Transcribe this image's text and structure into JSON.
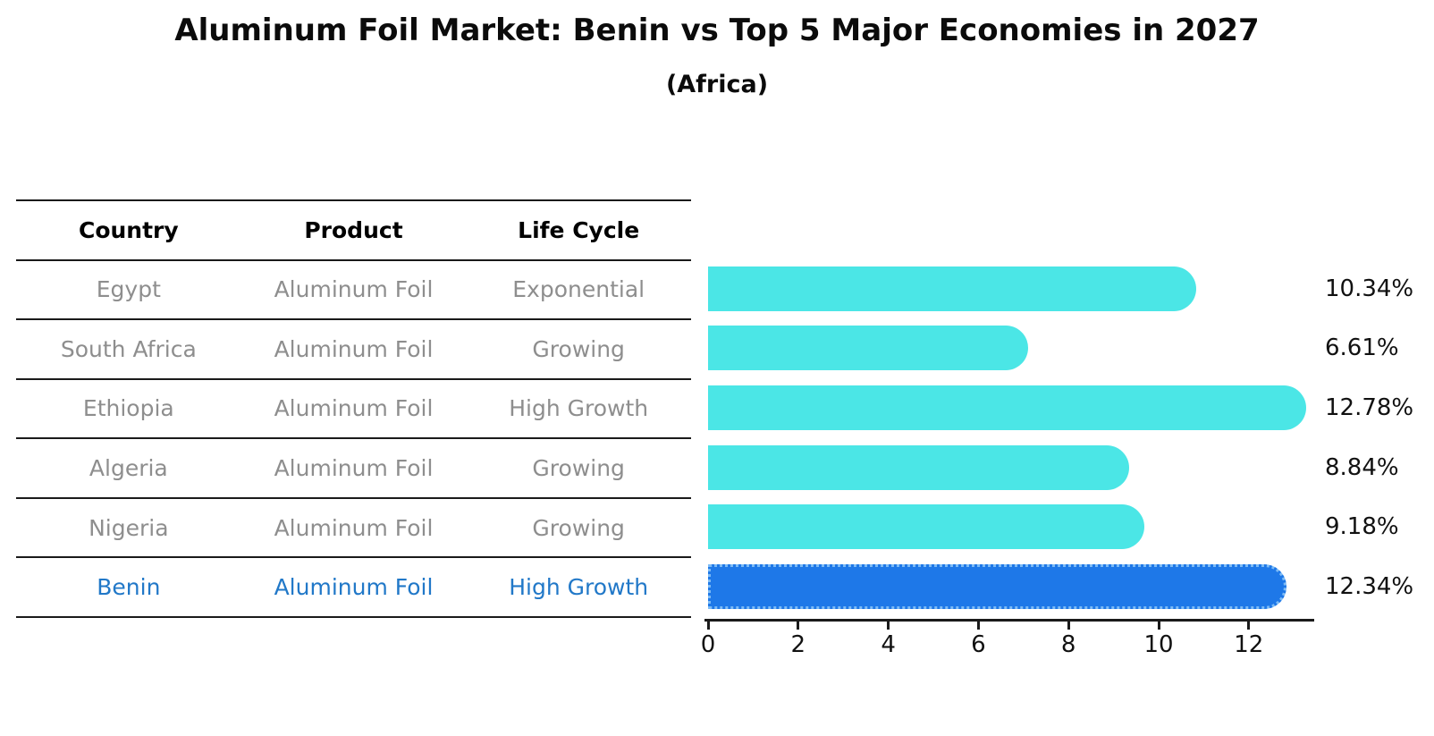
{
  "title": "Aluminum Foil Market: Benin vs Top 5 Major Economies in 2027",
  "subtitle": "(Africa)",
  "table": {
    "headers": [
      "Country",
      "Product",
      "Life Cycle"
    ],
    "rows": [
      {
        "country": "Egypt",
        "product": "Aluminum Foil",
        "life_cycle": "Exponential",
        "highlight": false
      },
      {
        "country": "South Africa",
        "product": "Aluminum Foil",
        "life_cycle": "Growing",
        "highlight": false
      },
      {
        "country": "Ethiopia",
        "product": "Aluminum Foil",
        "life_cycle": "High Growth",
        "highlight": false
      },
      {
        "country": "Algeria",
        "product": "Aluminum Foil",
        "life_cycle": "Growing",
        "highlight": false
      },
      {
        "country": "Nigeria",
        "product": "Aluminum Foil",
        "life_cycle": "Growing",
        "highlight": false
      },
      {
        "country": "Benin",
        "product": "Aluminum Foil",
        "life_cycle": "High Growth",
        "highlight": true
      }
    ]
  },
  "chart_data": {
    "type": "bar",
    "orientation": "horizontal",
    "title": "Aluminum Foil Market: Benin vs Top 5 Major Economies in 2027",
    "subtitle": "(Africa)",
    "categories": [
      "Egypt",
      "South Africa",
      "Ethiopia",
      "Algeria",
      "Nigeria",
      "Benin"
    ],
    "values": [
      10.34,
      6.61,
      12.78,
      8.84,
      9.18,
      12.34
    ],
    "value_labels": [
      "10.34%",
      "6.61%",
      "12.78%",
      "8.84%",
      "9.18%",
      "12.34%"
    ],
    "x_ticks": [
      0,
      2,
      4,
      6,
      8,
      10,
      12
    ],
    "xlim": [
      0,
      13.45
    ],
    "xlabel": "",
    "ylabel": "",
    "grid": false,
    "legend": false,
    "bar_color": "#4BE6E6",
    "highlight_color": "#1E78E8",
    "highlight_edge_color": "#7DBBF5",
    "highlight_index": 5
  },
  "colors": {
    "header_text": "#000000",
    "row_text": "#8E8E8E",
    "highlight_text": "#2178C8",
    "value_label_text": "#111111",
    "axis": "#1A1A1A"
  }
}
